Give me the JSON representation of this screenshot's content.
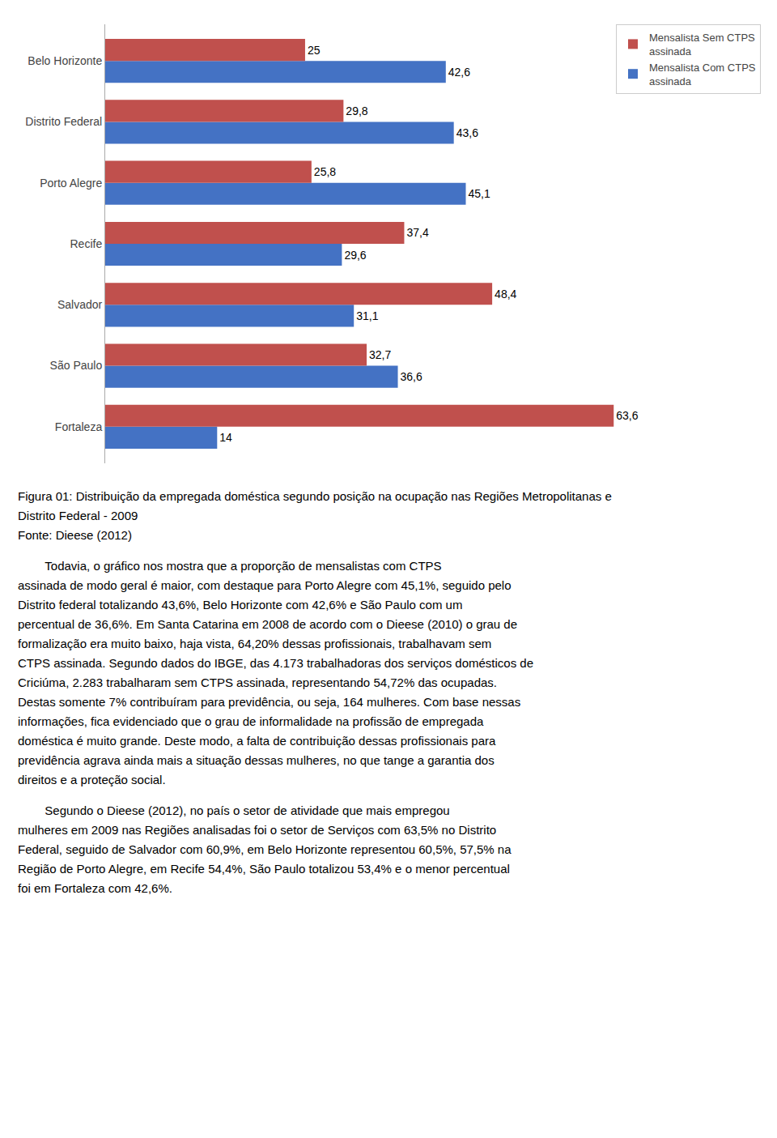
{
  "chart_data": {
    "type": "bar",
    "orientation": "horizontal",
    "categories": [
      "Fortaleza",
      "São Paulo",
      "Salvador",
      "Recife",
      "Porto Alegre",
      "Distrito Federal",
      "Belo Horizonte"
    ],
    "series": [
      {
        "name": "Mensalista Sem CTPS\nassinada",
        "color": "#C0504D",
        "values": [
          63.6,
          32.7,
          48.4,
          37.4,
          25.8,
          29.8,
          25.0
        ],
        "value_labels": [
          "63,6",
          "32,7",
          "48,4",
          "37,4",
          "25,8",
          "29,8",
          "25"
        ]
      },
      {
        "name": "Mensalista Com CTPS\nassinada",
        "color": "#4472C4",
        "values": [
          14.0,
          36.6,
          31.1,
          29.6,
          45.1,
          43.6,
          42.6
        ],
        "value_labels": [
          "14",
          "36,6",
          "31,1",
          "29,6",
          "45,1",
          "43,6",
          "42,6"
        ]
      }
    ],
    "xlim": [
      0,
      82
    ],
    "xticks": [],
    "tick_labels": "y",
    "grid": false,
    "legend": "upper right",
    "data_labels": true,
    "annotations": [
      [
        "Figura 01: Distribuição da empregada doméstica segundo posição na ocupação nas Regiões Metropolitanas e",
        "Distrito Federal - 2009",
        "Fonte: Dieese (2012)"
      ],
      [
        "        Todavia, o gráfico nos mostra que a proporção de mensalistas com CTPS",
        "assinada de modo geral é maior, com destaque para Porto Alegre com 45,1%, seguido pelo",
        "Distrito federal totalizando 43,6%, Belo Horizonte com 42,6% e São Paulo com um",
        "percentual de 36,6%. Em Santa Catarina em 2008 de acordo com o Dieese (2010) o grau de",
        "formalização era muito baixo, haja vista, 64,20% dessas profissionais, trabalhavam sem",
        "CTPS assinada. Segundo dados do IBGE, das 4.173 trabalhadoras dos serviços domésticos de",
        "Criciúma, 2.283 trabalharam sem CTPS assinada, representando 54,72% das ocupadas.",
        "Destas somente 7% contribuíram para previdência, ou seja, 164 mulheres. Com base nessas",
        "informações, fica evidenciado que o grau de informalidade na profissão de empregada",
        "doméstica é muito grande. Deste modo, a falta de contribuição dessas profissionais para",
        "previdência agrava ainda mais a situação dessas mulheres, no que tange a garantia dos",
        "direitos e a proteção social."
      ],
      [
        "        Segundo o Dieese (2012), no país o setor de atividade que mais empregou",
        "mulheres em 2009 nas Regiões analisadas foi o setor de Serviços com 63,5% no Distrito",
        "Federal, seguido de Salvador com 60,9%, em Belo Horizonte representou 60,5%, 57,5% na",
        "Região de Porto Alegre, em Recife 54,4%, São Paulo totalizou 53,4% e o menor percentual",
        "foi em Fortaleza com 42,6%."
      ]
    ]
  }
}
